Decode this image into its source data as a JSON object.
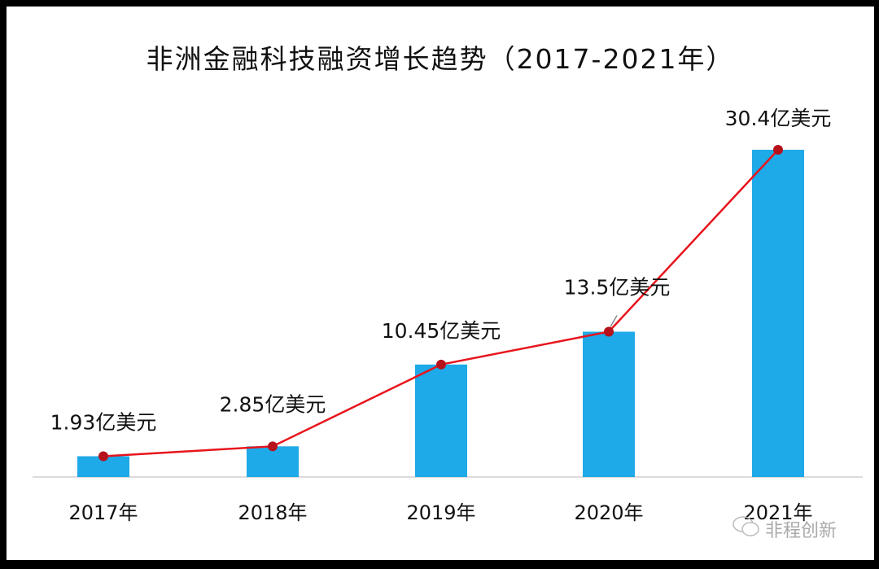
{
  "chart_data": {
    "type": "bar",
    "title": "非洲金融科技融资增长趋势（2017-2021年）",
    "categories": [
      "2017年",
      "2018年",
      "2019年",
      "2020年",
      "2021年"
    ],
    "values": [
      1.93,
      2.85,
      10.45,
      13.5,
      30.4
    ],
    "data_labels": [
      "1.93亿美元",
      "2.85亿美元",
      "10.45亿美元",
      "13.5亿美元",
      "30.4亿美元"
    ],
    "unit": "亿美元",
    "overlay_line": true,
    "ylim": [
      0,
      30.4
    ],
    "grid": false,
    "legend": "none",
    "colors": {
      "bar": "#1ea9e8",
      "line": "#e8141c",
      "marker": "#b5121b"
    }
  },
  "watermark": {
    "text": "非程创新",
    "icon": "wechat-icon"
  }
}
